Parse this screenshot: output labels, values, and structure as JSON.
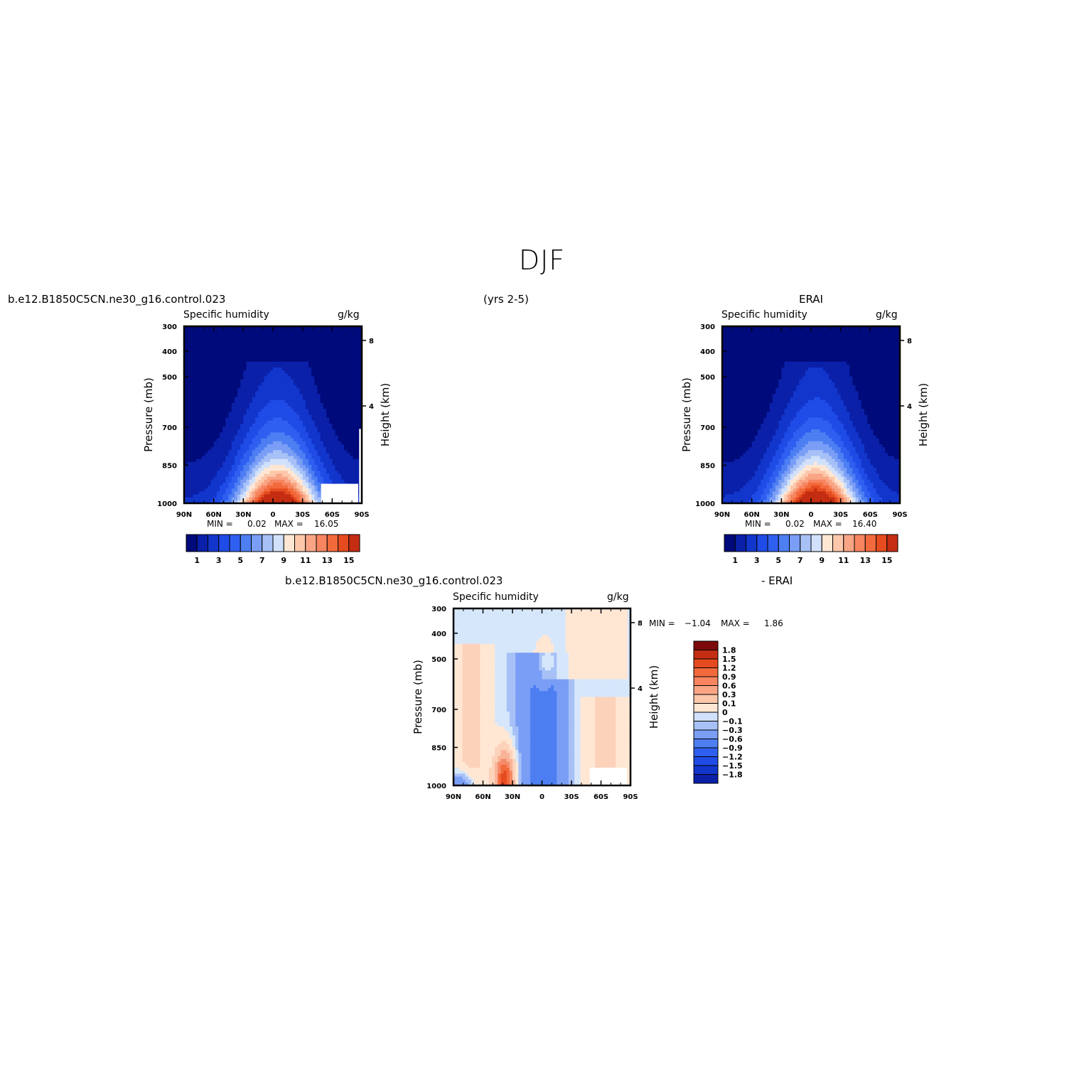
{
  "page": {
    "title": "DJF",
    "subtitle": "(yrs 2-5)",
    "case_name": "b.e12.B1850C5CN.ne30_g16.control.023",
    "obs_name": "ERAI",
    "diff_suffix": "- ERAI"
  },
  "colors": {
    "lowest": "#000a7a",
    "mid_blue": "#2f5ff0",
    "neutral": "#ffe7d4",
    "mid_red": "#f26a3c",
    "highest": "#7c0a0a"
  },
  "chart_data": [
    {
      "id": "model",
      "type": "heatmap",
      "title": "Specific humidity",
      "units": "g/kg",
      "xlabel": "",
      "ylabel": "Pressure (mb)",
      "ylabel_right": "Height (km)",
      "x_ticks": [
        "90N",
        "60N",
        "30N",
        "0",
        "30S",
        "60S",
        "90S"
      ],
      "y_ticks": [
        "300",
        "400",
        "500",
        "700",
        "850",
        "1000"
      ],
      "height_ticks": [
        "8",
        "4"
      ],
      "ylim": [
        1000,
        300
      ],
      "min_label": "MIN =",
      "min": "0.02",
      "max_label": "MAX =",
      "max": "16.05",
      "colorbar_labels": [
        "1",
        "3",
        "5",
        "7",
        "9",
        "11",
        "13",
        "15"
      ],
      "levels": [
        1,
        2,
        3,
        4,
        5,
        6,
        7,
        8,
        9,
        10,
        11,
        12,
        13,
        14,
        15
      ]
    },
    {
      "id": "obs",
      "type": "heatmap",
      "title": "Specific humidity",
      "units": "g/kg",
      "xlabel": "",
      "ylabel": "Pressure (mb)",
      "ylabel_right": "Height (km)",
      "x_ticks": [
        "90N",
        "60N",
        "30N",
        "0",
        "30S",
        "60S",
        "90S"
      ],
      "y_ticks": [
        "300",
        "400",
        "500",
        "700",
        "850",
        "1000"
      ],
      "height_ticks": [
        "8",
        "4"
      ],
      "ylim": [
        1000,
        300
      ],
      "min_label": "MIN =",
      "min": "0.02",
      "max_label": "MAX =",
      "max": "16.40",
      "colorbar_labels": [
        "1",
        "3",
        "5",
        "7",
        "9",
        "11",
        "13",
        "15"
      ],
      "levels": [
        1,
        2,
        3,
        4,
        5,
        6,
        7,
        8,
        9,
        10,
        11,
        12,
        13,
        14,
        15
      ]
    },
    {
      "id": "diff",
      "type": "heatmap",
      "title": "Specific humidity",
      "units": "g/kg",
      "xlabel": "",
      "ylabel": "Pressure (mb)",
      "ylabel_right": "Height (km)",
      "x_ticks": [
        "90N",
        "60N",
        "30N",
        "0",
        "30S",
        "60S",
        "90S"
      ],
      "y_ticks": [
        "300",
        "400",
        "500",
        "700",
        "850",
        "1000"
      ],
      "height_ticks": [
        "8",
        "4"
      ],
      "ylim": [
        1000,
        300
      ],
      "min_label": "MIN =",
      "min": "−1.04",
      "max_label": "MAX =",
      "max": "1.86",
      "colorbar_labels": [
        "1.8",
        "1.5",
        "1.2",
        "0.9",
        "0.6",
        "0.3",
        "0.1",
        "0",
        "−0.1",
        "−0.3",
        "−0.6",
        "−0.9",
        "−1.2",
        "−1.5",
        "−1.8"
      ],
      "levels": [
        -1.8,
        -1.5,
        -1.2,
        -0.9,
        -0.6,
        -0.3,
        -0.1,
        0,
        0.1,
        0.3,
        0.6,
        0.9,
        1.2,
        1.5,
        1.8
      ]
    }
  ]
}
